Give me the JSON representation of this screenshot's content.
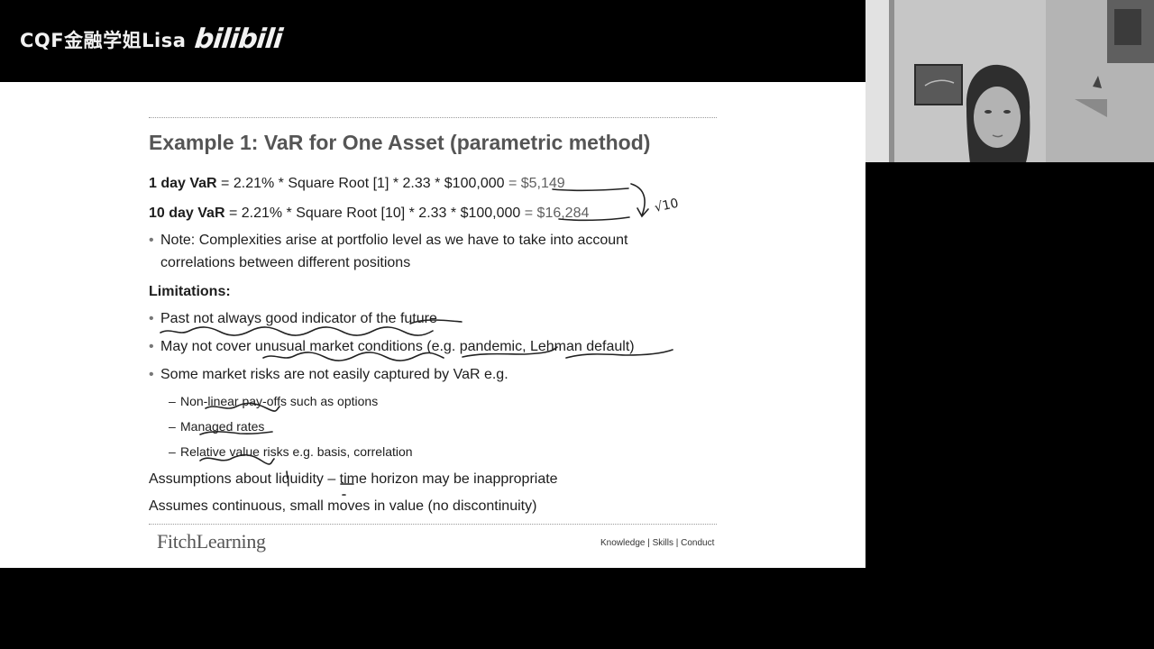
{
  "watermark": {
    "channel": "CQF金融学姐Lisa",
    "brand": "bilibili"
  },
  "slide": {
    "title": "Example 1: VaR for One Asset (parametric method)",
    "var_lines": [
      {
        "label": "1 day VaR",
        "formula": " = 2.21% * Square Root [1] * 2.33 * $100,000 ",
        "result": "= $5,149"
      },
      {
        "label": "10 day VaR",
        "formula": " = 2.21% * Square Root [10] * 2.33 * $100,000 ",
        "result": "= $16,284"
      }
    ],
    "note_line1": "Note: Complexities arise at portfolio level as we have to take into account",
    "note_line2": "correlations between different positions",
    "limitations_heading": "Limitations:",
    "limitations": [
      "Past not always good indicator of the future",
      "May not cover unusual market conditions (e.g. pandemic, Lehman default)",
      "Some market risks are not easily captured by VaR e.g."
    ],
    "sub_items": [
      "Non-linear pay-offs such as options",
      "Managed rates",
      "Relative value risks e.g. basis, correlation"
    ],
    "assumptions": [
      "Assumptions about liquidity – time horizon may be inappropriate",
      "Assumes continuous, small moves in value (no discontinuity)"
    ],
    "annotation": "√10",
    "footer_logo": "FitchLearning",
    "footer_tagline": "Knowledge | Skills | Conduct"
  },
  "colors": {
    "background": "#000000",
    "slide": "#ffffff",
    "title": "#555555",
    "ink": "#222222"
  }
}
